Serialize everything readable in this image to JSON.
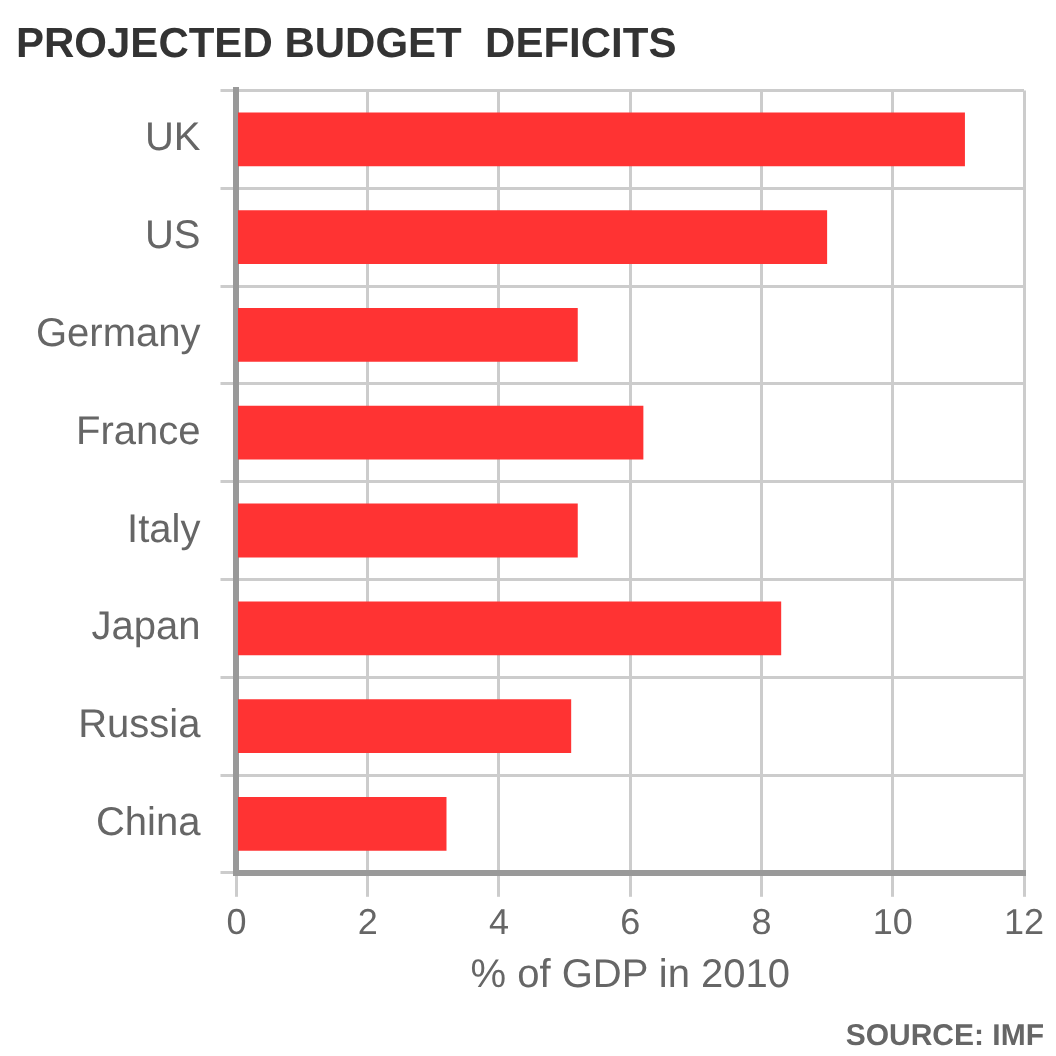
{
  "chart_data": {
    "type": "bar",
    "orientation": "horizontal",
    "title": "PROJECTED BUDGET  DEFICITS",
    "xlabel": "% of GDP in 2010",
    "categories": [
      "UK",
      "US",
      "Germany",
      "France",
      "Italy",
      "Japan",
      "Russia",
      "China"
    ],
    "values": [
      11.1,
      9.0,
      5.2,
      6.2,
      5.2,
      8.3,
      5.1,
      3.2
    ],
    "color": "#ff3333",
    "xlim": [
      0,
      12
    ],
    "xticks": [
      0,
      2,
      4,
      6,
      8,
      10,
      12
    ],
    "grid": true,
    "legend": false,
    "annotations": [
      "SOURCE: IMF"
    ]
  }
}
